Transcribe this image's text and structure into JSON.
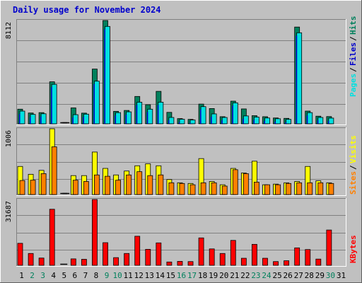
{
  "title": "Daily usage for November 2024",
  "colors": {
    "background": "#c0c0c0",
    "plot": "#c0c0c0",
    "hits": "#00805c",
    "files": "#00c0ff",
    "pages": "#00e0e0",
    "visits": "#ffff00",
    "sites": "#ff8000",
    "kbytes": "#ff0000",
    "weekend_label": "#00805c",
    "weekday_label": "#000000"
  },
  "chart_data": [
    {
      "type": "bar",
      "panel": "hits-files-pages",
      "ymax_label": "8112",
      "ymax": 8112,
      "legend": [
        {
          "label": "Pages",
          "color": "#00e0e0"
        },
        {
          "label": "Files",
          "color": "#0000cc"
        },
        {
          "label": "Hits",
          "color": "#00805c"
        }
      ],
      "categories": [
        "1",
        "2",
        "3",
        "4",
        "5",
        "6",
        "7",
        "8",
        "9",
        "10",
        "11",
        "12",
        "13",
        "14",
        "15",
        "16",
        "17",
        "18",
        "19",
        "20",
        "21",
        "22",
        "23",
        "24",
        "25",
        "26",
        "27",
        "28",
        "29",
        "30",
        "31"
      ],
      "weekend_days": [
        "2",
        "3",
        "9",
        "10",
        "16",
        "17",
        "23",
        "24",
        "30"
      ],
      "series": [
        {
          "name": "Hits",
          "values": [
            1150,
            850,
            880,
            3300,
            0,
            1250,
            840,
            4300,
            8112,
            980,
            1050,
            2150,
            1500,
            2550,
            900,
            410,
            350,
            1550,
            1200,
            560,
            1780,
            1170,
            640,
            560,
            460,
            430,
            7600,
            1000,
            600,
            570,
            null
          ]
        },
        {
          "name": "Files",
          "values": [
            1000,
            740,
            790,
            3100,
            0,
            720,
            760,
            3350,
            7650,
            880,
            940,
            1700,
            1150,
            1700,
            500,
            360,
            300,
            1350,
            780,
            500,
            1650,
            620,
            530,
            460,
            400,
            350,
            7150,
            880,
            500,
            450,
            null
          ]
        }
      ]
    },
    {
      "type": "bar",
      "panel": "visits-sites",
      "ymax_label": "1006",
      "ymax": 1006,
      "legend": [
        {
          "label": "Sites",
          "color": "#ff8000"
        },
        {
          "label": "Visits",
          "color": "#ffff00"
        }
      ],
      "categories": [
        "1",
        "2",
        "3",
        "4",
        "5",
        "6",
        "7",
        "8",
        "9",
        "10",
        "11",
        "12",
        "13",
        "14",
        "15",
        "16",
        "17",
        "18",
        "19",
        "20",
        "21",
        "22",
        "23",
        "24",
        "25",
        "26",
        "27",
        "28",
        "29",
        "30",
        "31"
      ],
      "series": [
        {
          "name": "Visits",
          "values": [
            430,
            310,
            370,
            1006,
            0,
            290,
            290,
            650,
            400,
            300,
            360,
            440,
            470,
            440,
            230,
            180,
            170,
            550,
            200,
            150,
            400,
            330,
            510,
            150,
            160,
            180,
            200,
            430,
            210,
            180,
            null
          ]
        },
        {
          "name": "Sites",
          "values": [
            215,
            220,
            320,
            730,
            0,
            220,
            200,
            300,
            280,
            220,
            300,
            350,
            290,
            300,
            180,
            170,
            150,
            180,
            180,
            130,
            380,
            320,
            190,
            150,
            150,
            170,
            180,
            180,
            180,
            170,
            null
          ]
        }
      ]
    },
    {
      "type": "bar",
      "panel": "kbytes",
      "ymax_label": "31687",
      "ymax": 31687,
      "legend": [
        {
          "label": "KBytes",
          "color": "#ff0000"
        }
      ],
      "categories": [
        "1",
        "2",
        "3",
        "4",
        "5",
        "6",
        "7",
        "8",
        "9",
        "10",
        "11",
        "12",
        "13",
        "14",
        "15",
        "16",
        "17",
        "18",
        "19",
        "20",
        "21",
        "22",
        "23",
        "24",
        "25",
        "26",
        "27",
        "28",
        "29",
        "30",
        "31"
      ],
      "series": [
        {
          "name": "KBytes",
          "values": [
            10600,
            5700,
            3500,
            27000,
            0,
            3100,
            2900,
            31687,
            10900,
            3700,
            5700,
            14000,
            7700,
            10800,
            1600,
            1900,
            1800,
            13200,
            7900,
            5700,
            12000,
            3400,
            10100,
            3400,
            1800,
            2200,
            8400,
            7600,
            3000,
            17000,
            null
          ]
        }
      ]
    }
  ]
}
